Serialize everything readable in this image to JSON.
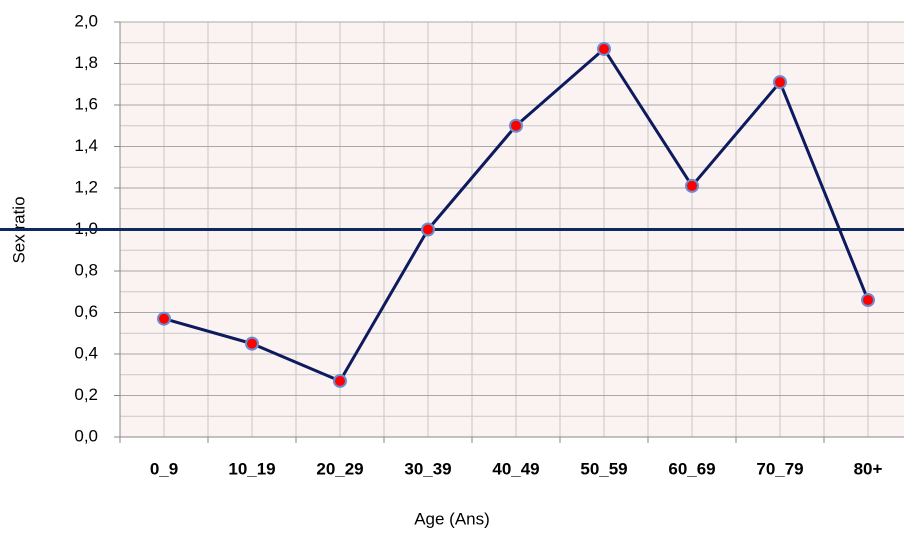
{
  "chart_data": {
    "type": "line",
    "x_label": "Age (Ans)",
    "y_label": "Sex ratio",
    "categories": [
      "0_9",
      "10_19",
      "20_29",
      "30_39",
      "40_49",
      "50_59",
      "60_69",
      "70_79",
      "80+"
    ],
    "series": [
      {
        "name": "Sex ratio",
        "color": "#0d1b5e",
        "marker_color": "#ff0000",
        "values": [
          0.57,
          0.45,
          0.27,
          1.0,
          1.5,
          1.87,
          1.21,
          1.71,
          0.66
        ]
      }
    ],
    "reference_line": {
      "value": 1.0,
      "color": "#0d2a5e"
    },
    "ylim": [
      0,
      2
    ],
    "yticks": [
      {
        "value": 0,
        "label": "0,0"
      },
      {
        "value": 0.2,
        "label": "0,2"
      },
      {
        "value": 0.4,
        "label": "0,4"
      },
      {
        "value": 0.6,
        "label": "0,6"
      },
      {
        "value": 0.8,
        "label": "0,8"
      },
      {
        "value": 1.0,
        "label": "1,0"
      },
      {
        "value": 1.2,
        "label": "1,2"
      },
      {
        "value": 1.4,
        "label": "1,4"
      },
      {
        "value": 1.6,
        "label": "1,6"
      },
      {
        "value": 1.8,
        "label": "1,8"
      },
      {
        "value": 2.0,
        "label": "2,0"
      }
    ],
    "grid": true
  }
}
